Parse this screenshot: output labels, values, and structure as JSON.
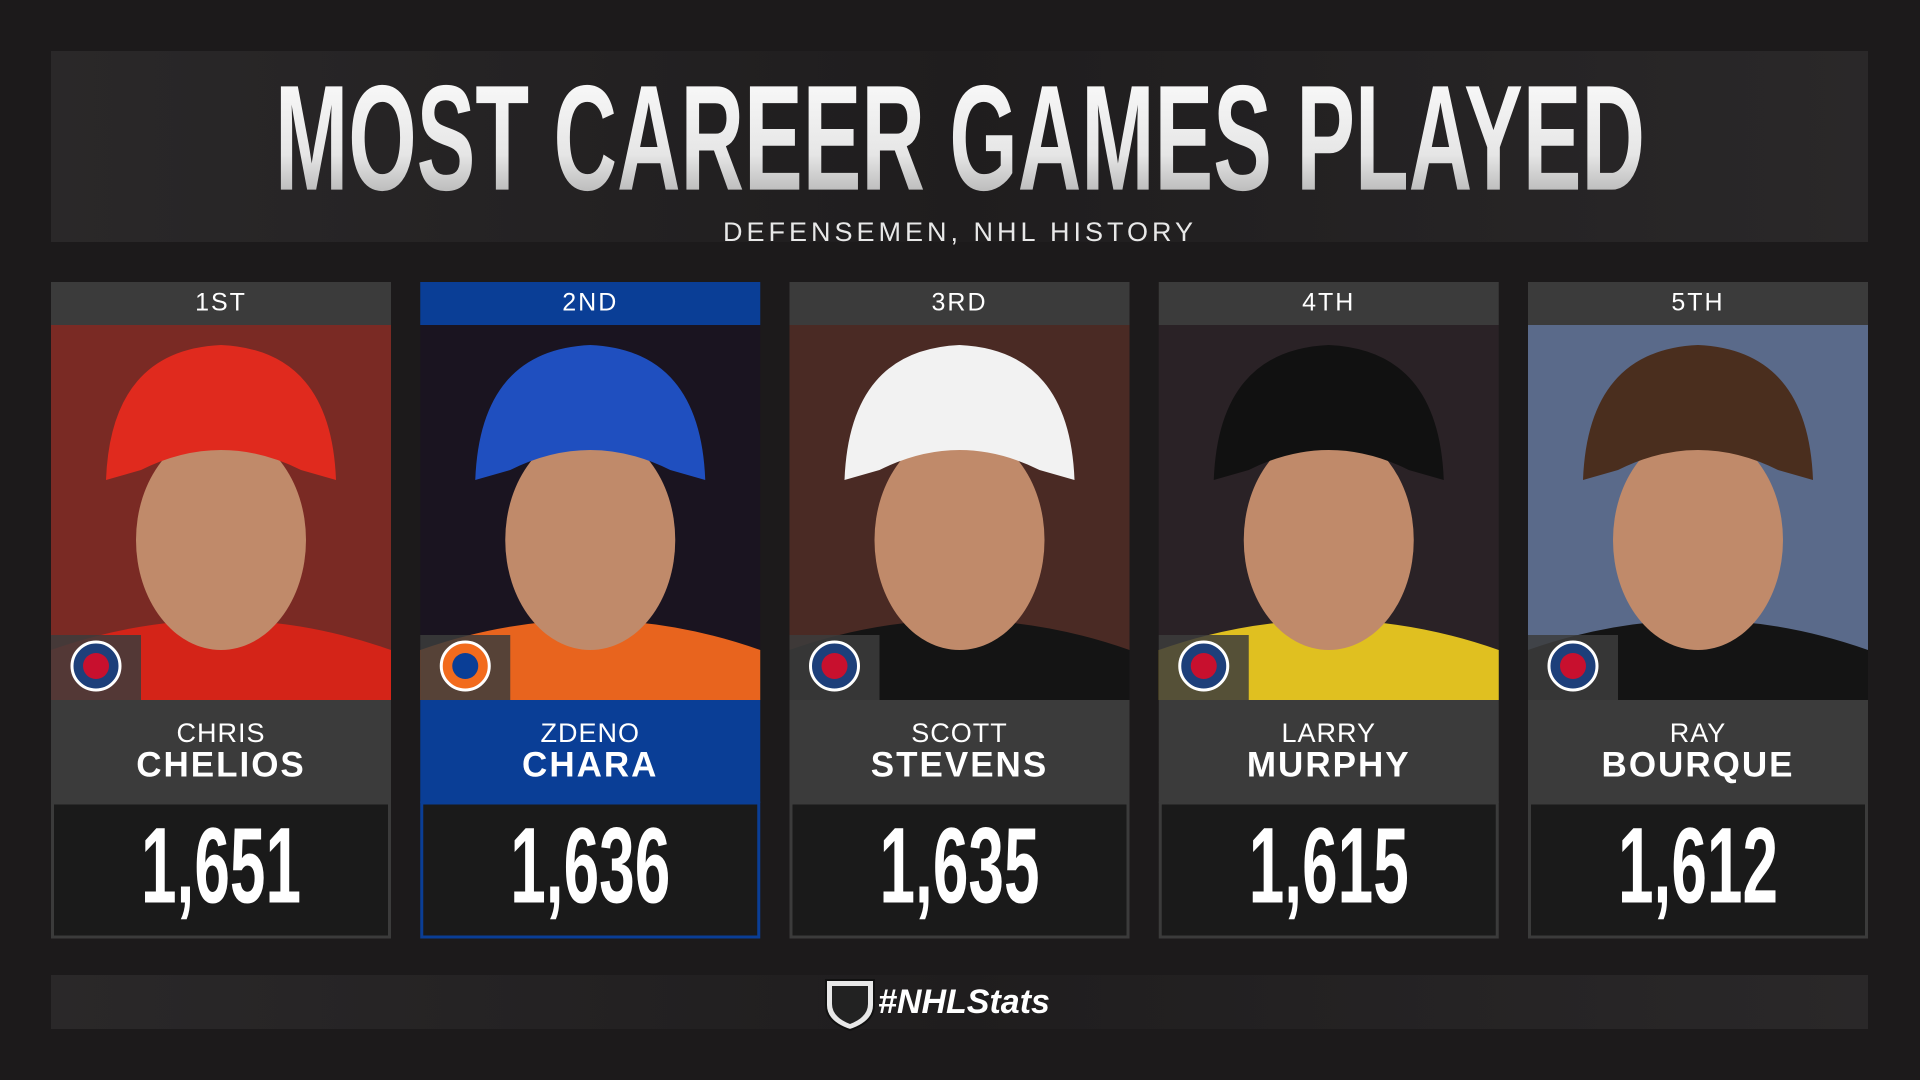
{
  "header": {
    "title": "MOST CAREER GAMES PLAYED",
    "subtitle": "DEFENSEMEN, NHL HISTORY"
  },
  "players": [
    {
      "rank": "1ST",
      "first_name": "CHRIS",
      "last_name": "CHELIOS",
      "games": "1,651",
      "color": "#3b3b3b"
    },
    {
      "rank": "2ND",
      "first_name": "ZDENO",
      "last_name": "CHARA",
      "games": "1,636",
      "color": "#0a3e96"
    },
    {
      "rank": "3RD",
      "first_name": "SCOTT",
      "last_name": "STEVENS",
      "games": "1,635",
      "color": "#3b3b3b"
    },
    {
      "rank": "4TH",
      "first_name": "LARRY",
      "last_name": "MURPHY",
      "games": "1,615",
      "color": "#3b3b3b"
    },
    {
      "rank": "5TH",
      "first_name": "RAY",
      "last_name": "BOURQUE",
      "games": "1,612",
      "color": "#3b3b3b"
    }
  ],
  "footer": {
    "hashtag": "#NHLStats"
  }
}
